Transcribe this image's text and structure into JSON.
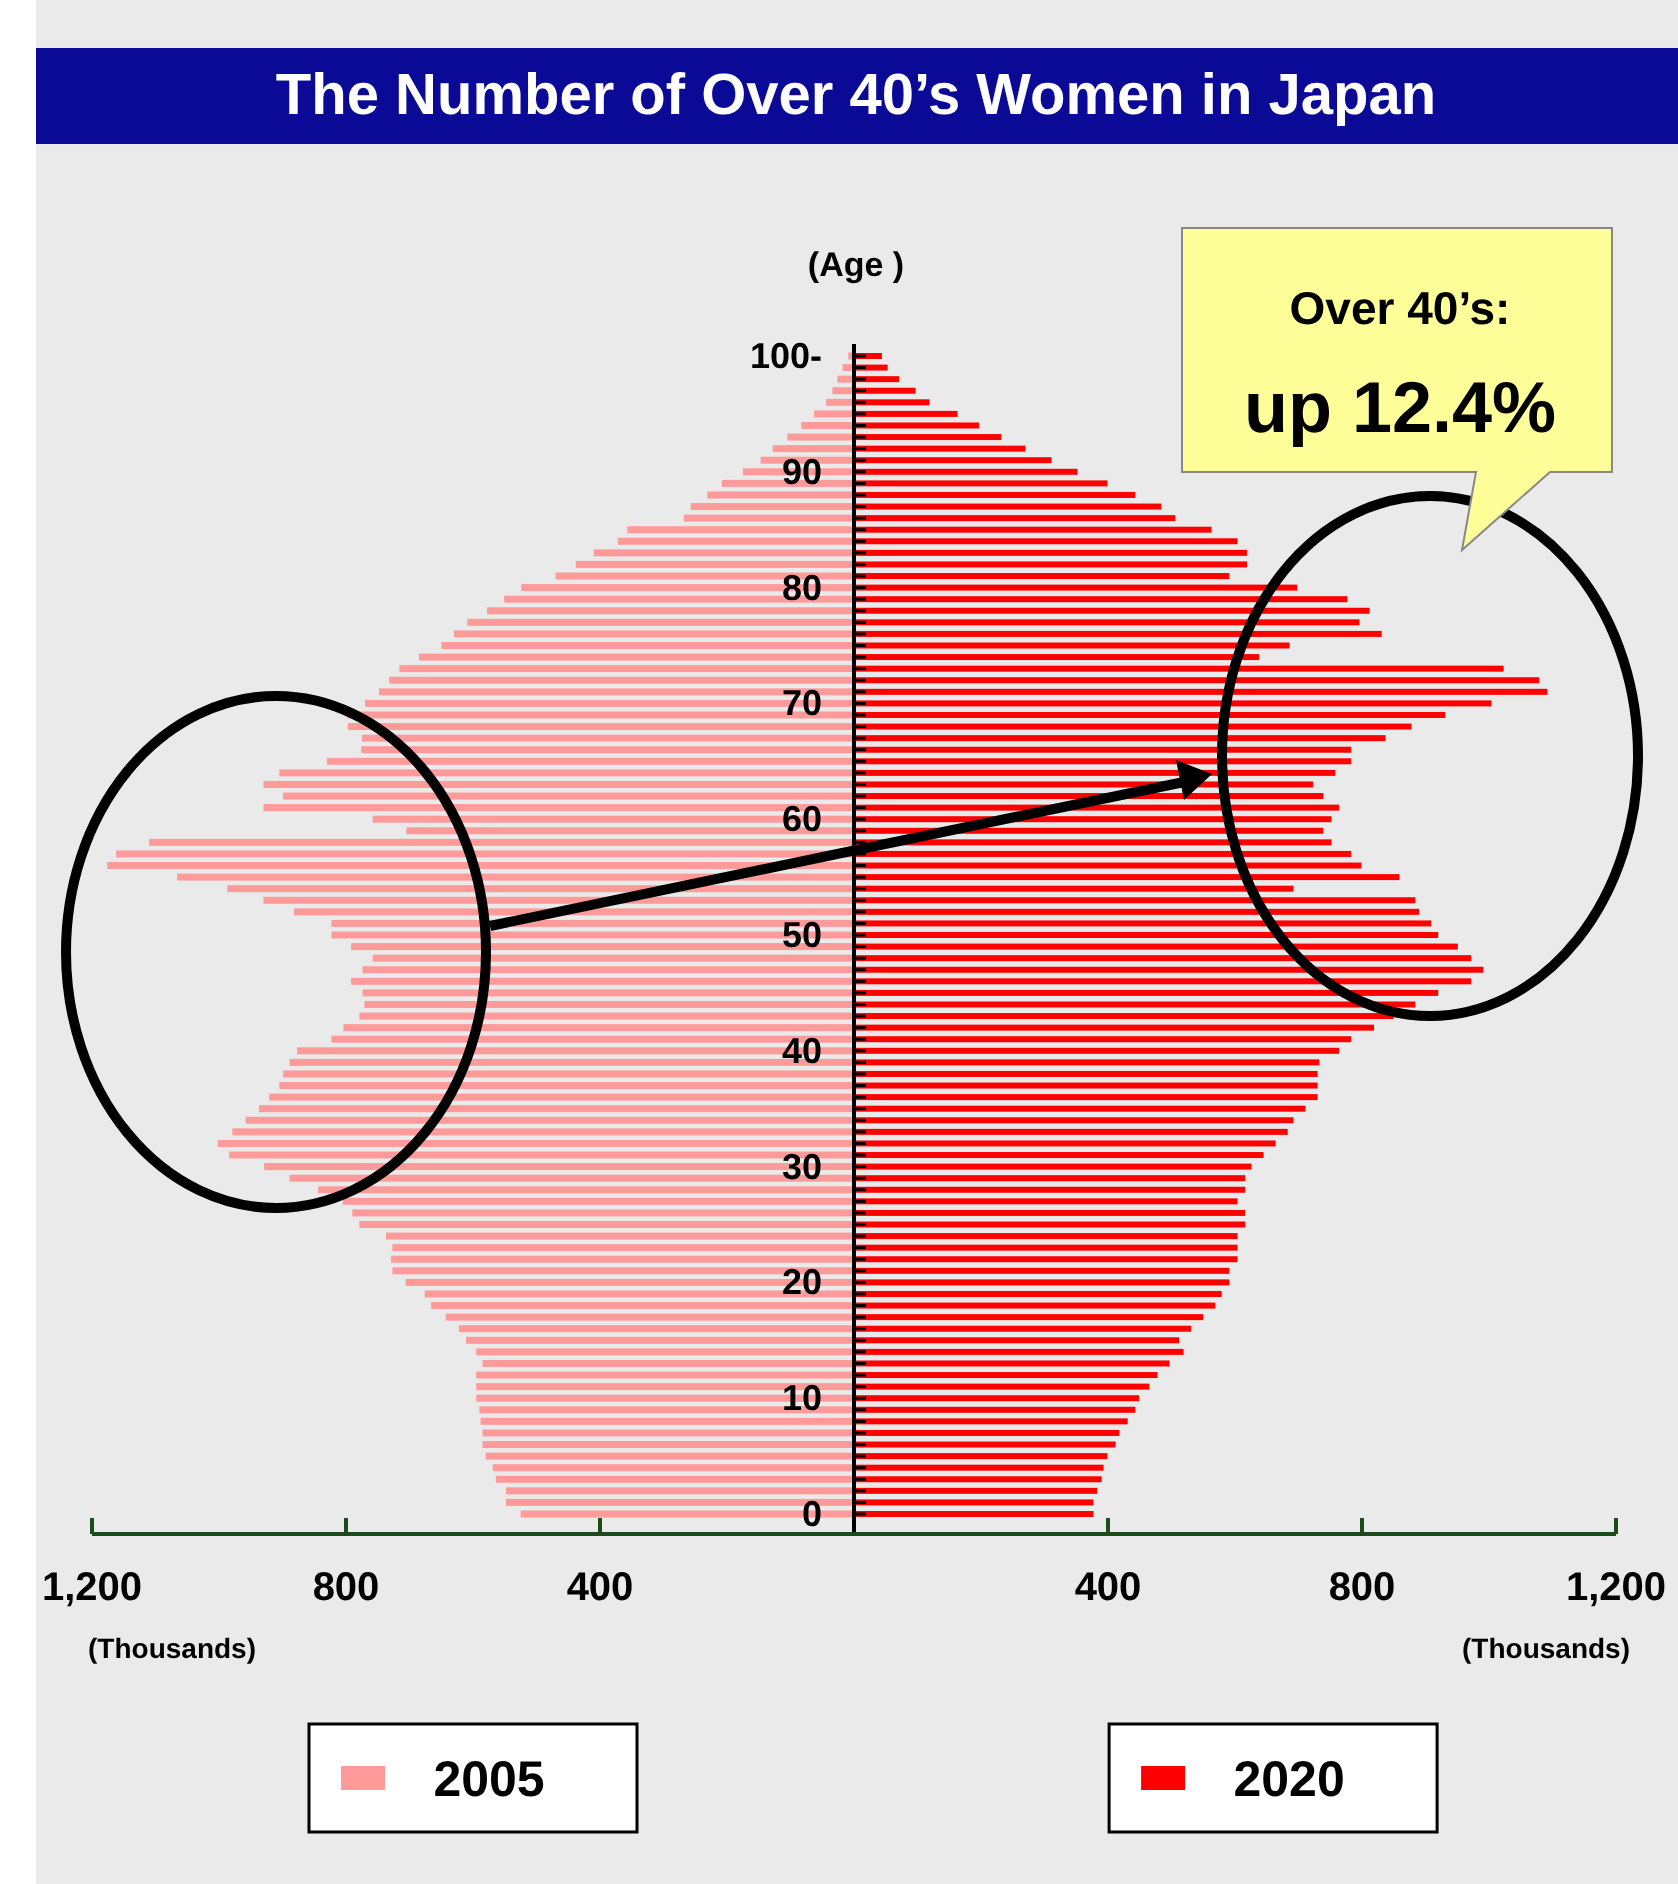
{
  "chart_data": {
    "type": "bar",
    "orientation": "horizontal",
    "title": "The Number of Over 40’s Women in Japan",
    "ylabel": "(Age )",
    "xlabel": "(Thousands)",
    "categories": [
      "100-",
      null,
      null,
      null,
      null,
      null,
      null,
      null,
      null,
      null,
      "90",
      null,
      null,
      null,
      null,
      null,
      null,
      null,
      null,
      null,
      "80",
      null,
      null,
      null,
      null,
      null,
      null,
      null,
      null,
      null,
      "70",
      null,
      null,
      null,
      null,
      null,
      null,
      null,
      null,
      null,
      "60",
      null,
      null,
      null,
      null,
      null,
      null,
      null,
      null,
      null,
      "50",
      null,
      null,
      null,
      null,
      null,
      null,
      null,
      null,
      null,
      "40",
      null,
      null,
      null,
      null,
      null,
      null,
      null,
      null,
      null,
      "30",
      null,
      null,
      null,
      null,
      null,
      null,
      null,
      null,
      null,
      "20",
      null,
      null,
      null,
      null,
      null,
      null,
      null,
      null,
      null,
      "10",
      null,
      null,
      null,
      null,
      null,
      null,
      null,
      null,
      null,
      "0"
    ],
    "series": [
      {
        "name": "2005",
        "color": "#ff9a9a",
        "values": [
          -9,
          -18,
          -26,
          -34,
          -44,
          -63,
          -83,
          -105,
          -128,
          -147,
          -175,
          -208,
          -231,
          -257,
          -268,
          -357,
          -372,
          -410,
          -438,
          -470,
          -524,
          -551,
          -578,
          -609,
          -630,
          -650,
          -685,
          -716,
          -732,
          -748,
          -770,
          -798,
          -797,
          -775,
          -776,
          -830,
          -905,
          -930,
          -899,
          -930,
          -758,
          -705,
          -1110,
          -1162,
          -1176,
          -1066,
          -987,
          -930,
          -882,
          -823,
          -823,
          -792,
          -758,
          -774,
          -792,
          -774,
          -771,
          -779,
          -804,
          -823,
          -877,
          -889,
          -899,
          -905,
          -921,
          -937,
          -958,
          -979,
          -1002,
          -984,
          -929,
          -889,
          -844,
          -805,
          -790,
          -779,
          -737,
          -727,
          -729,
          -727,
          -706,
          -676,
          -666,
          -643,
          -622,
          -611,
          -595,
          -585,
          -595,
          -595,
          -595,
          -590,
          -588,
          -585,
          -585,
          -580,
          -569,
          -564,
          -548,
          -548,
          -525
        ]
      },
      {
        "name": "2020",
        "color": "#ff0000",
        "values": [
          44,
          53,
          71,
          97,
          119,
          163,
          197,
          232,
          270,
          311,
          352,
          399,
          443,
          484,
          506,
          563,
          604,
          619,
          619,
          591,
          698,
          777,
          812,
          796,
          831,
          686,
          638,
          1023,
          1079,
          1092,
          1004,
          931,
          878,
          837,
          783,
          783,
          758,
          723,
          739,
          764,
          752,
          739,
          752,
          783,
          799,
          859,
          692,
          884,
          890,
          909,
          920,
          951,
          972,
          991,
          972,
          920,
          884,
          850,
          819,
          783,
          764,
          733,
          730,
          730,
          730,
          711,
          692,
          683,
          664,
          645,
          626,
          616,
          616,
          604,
          616,
          616,
          604,
          604,
          604,
          591,
          591,
          579,
          569,
          550,
          531,
          512,
          519,
          497,
          478,
          465,
          449,
          443,
          431,
          418,
          412,
          399,
          393,
          390,
          383,
          377,
          377
        ]
      }
    ],
    "xlim": [
      -1200,
      1200
    ],
    "xticks": [
      {
        "value": -1200,
        "label": "1,200"
      },
      {
        "value": -800,
        "label": "800"
      },
      {
        "value": -400,
        "label": "400"
      },
      400,
      800,
      {
        "value": 1200,
        "label": "1,200"
      }
    ],
    "legend": "bottom",
    "stacked": true,
    "annotations": [
      "Over 40’s:",
      "up 12.4%"
    ]
  }
}
